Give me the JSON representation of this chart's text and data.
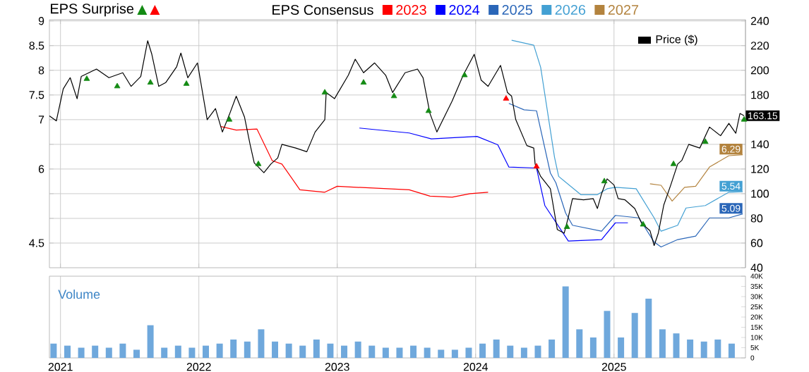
{
  "chart_data": [
    {
      "type": "line",
      "title": "EPS Surprise",
      "legend_title": "EPS Consensus",
      "legend": "top",
      "tick_labels": "y",
      "grid": true,
      "xlim": [
        2020.92,
        2025.95
      ],
      "xticks": [
        2021,
        2022,
        2023,
        2024,
        2025
      ],
      "ylim": [
        4.0,
        9.025
      ],
      "yticks": [
        4.5,
        {
          "value": 5,
          "label": null
        },
        {
          "value": 5.5,
          "label": null
        },
        6,
        {
          "value": 6.5,
          "label": null
        },
        7,
        7.5,
        8,
        8.5,
        9
      ],
      "y2lim": [
        40,
        241
      ],
      "y2ticks": [
        40,
        60,
        80,
        100,
        120,
        140,
        {
          "value": 160,
          "label": null
        },
        180,
        200,
        220,
        240
      ],
      "series": [
        {
          "name": "2023",
          "color": "#ff0000",
          "x": [
            2022.16,
            2022.27,
            2022.42,
            2022.53,
            2022.6,
            2022.73,
            2022.91,
            2023.0,
            2023.14,
            2023.52,
            2023.67,
            2023.83,
            2023.96,
            2024.09
          ],
          "values": [
            6.86,
            6.79,
            6.81,
            6.17,
            6.1,
            5.58,
            5.53,
            5.65,
            5.63,
            5.58,
            5.45,
            5.43,
            5.5,
            5.53
          ]
        },
        {
          "name": "2024",
          "color": "#0000ff",
          "x": [
            2023.16,
            2023.52,
            2023.68,
            2024.01,
            2024.16,
            2024.24,
            2024.44,
            2024.5,
            2024.67,
            2024.91,
            2025.01,
            2025.1
          ],
          "values": [
            6.83,
            6.73,
            6.61,
            6.66,
            6.49,
            6.04,
            6.02,
            5.26,
            4.54,
            4.57,
            4.91,
            4.91
          ]
        },
        {
          "name": "2025",
          "color": "#2a66b8",
          "x": [
            2024.24,
            2024.35,
            2024.44,
            2024.54,
            2024.58,
            2024.65,
            2024.7,
            2024.91,
            2025.01,
            2025.18,
            2025.29,
            2025.34,
            2025.46,
            2025.59,
            2025.69,
            2025.83,
            2025.93
          ],
          "values": [
            7.33,
            7.2,
            7.18,
            5.92,
            5.72,
            5.11,
            4.86,
            4.74,
            5.06,
            5.01,
            4.52,
            4.42,
            4.57,
            4.64,
            5.01,
            5.01,
            5.09
          ],
          "value_labels": [
            null,
            null,
            null,
            null,
            null,
            null,
            null,
            null,
            null,
            null,
            null,
            null,
            null,
            null,
            null,
            null,
            "5.09"
          ]
        },
        {
          "name": "2026",
          "color": "#43a0d3",
          "x": [
            2024.26,
            2024.42,
            2024.47,
            2024.57,
            2024.6,
            2024.76,
            2024.88,
            2024.95,
            2025.01,
            2025.16,
            2025.29,
            2025.34,
            2025.46,
            2025.52,
            2025.66,
            2025.83,
            2025.93
          ],
          "values": [
            8.61,
            8.51,
            8.06,
            6.24,
            5.85,
            5.48,
            5.48,
            5.6,
            5.63,
            5.6,
            5.01,
            4.74,
            4.86,
            5.21,
            5.26,
            5.53,
            5.54
          ],
          "value_labels": [
            null,
            null,
            null,
            null,
            null,
            null,
            null,
            null,
            null,
            null,
            null,
            null,
            null,
            null,
            null,
            null,
            "5.54"
          ]
        },
        {
          "name": "2027",
          "color": "#b3833e",
          "x": [
            2025.26,
            2025.34,
            2025.42,
            2025.51,
            2025.59,
            2025.69,
            2025.83,
            2025.93
          ],
          "values": [
            5.7,
            5.67,
            5.35,
            5.63,
            5.65,
            6.04,
            6.27,
            6.29
          ],
          "value_labels": [
            null,
            null,
            null,
            null,
            null,
            null,
            null,
            "6.29"
          ]
        },
        {
          "name": "Price ($)",
          "color": "#000000",
          "axis": "y2",
          "x": [
            2020.92,
            2020.97,
            2021.02,
            2021.07,
            2021.12,
            2021.15,
            2021.26,
            2021.35,
            2021.45,
            2021.51,
            2021.58,
            2021.63,
            2021.66,
            2021.71,
            2021.76,
            2021.84,
            2021.87,
            2021.92,
            2021.99,
            2022.06,
            2022.12,
            2022.17,
            2022.22,
            2022.27,
            2022.33,
            2022.37,
            2022.4,
            2022.47,
            2022.52,
            2022.57,
            2022.6,
            2022.7,
            2022.78,
            2022.84,
            2022.91,
            2022.92,
            2022.98,
            2023.08,
            2023.13,
            2023.19,
            2023.27,
            2023.35,
            2023.4,
            2023.49,
            2023.58,
            2023.62,
            2023.67,
            2023.72,
            2023.83,
            2023.91,
            2023.99,
            2024.04,
            2024.09,
            2024.18,
            2024.23,
            2024.26,
            2024.29,
            2024.37,
            2024.42,
            2024.43,
            2024.47,
            2024.54,
            2024.59,
            2024.64,
            2024.67,
            2024.7,
            2024.78,
            2024.85,
            2024.88,
            2024.91,
            2024.95,
            2025.0,
            2025.03,
            2025.08,
            2025.15,
            2025.2,
            2025.26,
            2025.29,
            2025.32,
            2025.36,
            2025.41,
            2025.46,
            2025.49,
            2025.54,
            2025.62,
            2025.69,
            2025.77,
            2025.83,
            2025.88,
            2025.91,
            2025.94
          ],
          "values": [
            163,
            159,
            185,
            194,
            177,
            195,
            201,
            194,
            198,
            187,
            195,
            224,
            213,
            187,
            190,
            203,
            214,
            194,
            206,
            160,
            169,
            150,
            164,
            179,
            162,
            140,
            125,
            117,
            124,
            129,
            140,
            137,
            134,
            150,
            160,
            182,
            177,
            196,
            209,
            198,
            206,
            196,
            182,
            198,
            201,
            194,
            165,
            150,
            175,
            196,
            213,
            192,
            187,
            204,
            182,
            179,
            160,
            139,
            137,
            124,
            114,
            104,
            71,
            68,
            81,
            96,
            95,
            96,
            88,
            100,
            112,
            107,
            96,
            95,
            88,
            76,
            70,
            58,
            68,
            91,
            107,
            124,
            127,
            140,
            137,
            154,
            147,
            157,
            149,
            165,
            163.15
          ],
          "value_labels": [
            null,
            null,
            null,
            null,
            null,
            null,
            null,
            null,
            null,
            null,
            null,
            null,
            null,
            null,
            null,
            null,
            null,
            null,
            null,
            null,
            null,
            null,
            null,
            null,
            null,
            null,
            null,
            null,
            null,
            null,
            null,
            null,
            null,
            null,
            null,
            null,
            null,
            null,
            null,
            null,
            null,
            null,
            null,
            null,
            null,
            null,
            null,
            null,
            null,
            null,
            null,
            null,
            null,
            null,
            null,
            null,
            null,
            null,
            null,
            null,
            null,
            null,
            null,
            null,
            null,
            null,
            null,
            null,
            null,
            null,
            null,
            null,
            null,
            null,
            null,
            null,
            null,
            null,
            null,
            null,
            null,
            null,
            null,
            null,
            null,
            null,
            null,
            null,
            null,
            null,
            "163.15"
          ]
        },
        {
          "type": "scatter",
          "marker": "triangle",
          "color": "#138a13",
          "axis": "y2",
          "x": [
            2021.19,
            2021.41,
            2021.65,
            2021.91,
            2022.22,
            2022.43,
            2022.91,
            2023.19,
            2023.41,
            2023.66,
            2023.92,
            2024.66,
            2024.93,
            2025.21,
            2025.43,
            2025.66,
            2025.94
          ],
          "values": [
            193,
            187,
            190,
            189,
            160,
            124,
            182,
            190,
            179,
            167,
            196,
            73,
            110,
            75,
            124,
            142,
            160
          ]
        },
        {
          "type": "scatter",
          "marker": "triangle",
          "color": "#ff0000",
          "axis": "y2",
          "x": [
            2024.22,
            2024.44
          ],
          "values": [
            177,
            122
          ]
        }
      ]
    },
    {
      "type": "bar",
      "title": "Volume",
      "grid": "x",
      "xlim": [
        2020.92,
        2025.95
      ],
      "xticks": [
        2021,
        2022,
        2023,
        2024,
        2025
      ],
      "y2lim": [
        0,
        40000
      ],
      "y2ticks": [
        0,
        {
          "value": 5000,
          "label": "5K"
        },
        {
          "value": 10000,
          "label": "10K"
        },
        {
          "value": 15000,
          "label": "15K"
        },
        {
          "value": 20000,
          "label": "20K"
        },
        {
          "value": 25000,
          "label": "25K"
        },
        {
          "value": 30000,
          "label": "30K"
        },
        {
          "value": 35000,
          "label": "35K"
        },
        {
          "value": 40000,
          "label": "40K"
        }
      ],
      "x": [
        2020.95,
        2021.05,
        2021.15,
        2021.25,
        2021.35,
        2021.45,
        2021.55,
        2021.65,
        2021.75,
        2021.85,
        2021.95,
        2022.05,
        2022.15,
        2022.25,
        2022.35,
        2022.45,
        2022.55,
        2022.65,
        2022.75,
        2022.85,
        2022.95,
        2023.05,
        2023.15,
        2023.25,
        2023.35,
        2023.45,
        2023.55,
        2023.65,
        2023.75,
        2023.85,
        2023.95,
        2024.05,
        2024.15,
        2024.25,
        2024.35,
        2024.45,
        2024.55,
        2024.65,
        2024.75,
        2024.85,
        2024.95,
        2025.05,
        2025.15,
        2025.25,
        2025.35,
        2025.45,
        2025.55,
        2025.65,
        2025.75,
        2025.85
      ],
      "series": [
        {
          "color": "#6fa8dc",
          "axis": "y2",
          "values": [
            7000,
            6000,
            5000,
            6000,
            5000,
            7000,
            4000,
            16000,
            5000,
            6000,
            5000,
            6000,
            7000,
            9000,
            8000,
            14000,
            8000,
            7000,
            6000,
            9000,
            7000,
            6000,
            8000,
            6000,
            5000,
            5000,
            6000,
            5000,
            4000,
            4000,
            5000,
            7000,
            9000,
            6000,
            5000,
            6000,
            9000,
            35000,
            14000,
            10000,
            23000,
            10000,
            22000,
            29000,
            14000,
            12000,
            9000,
            8000,
            9000,
            7000
          ]
        }
      ]
    }
  ]
}
